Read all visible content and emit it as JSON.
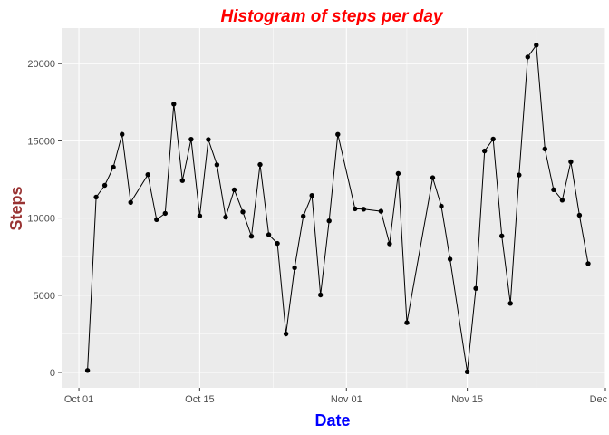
{
  "colors": {
    "title": "#ff0000",
    "xlabel": "#0000ff",
    "ylabel": "#993333",
    "panel_bg": "#ebebeb",
    "grid": "#ffffff",
    "line": "#000000",
    "point": "#000000"
  },
  "chart_data": {
    "type": "line",
    "title": "Histogram of steps per day",
    "xlabel": "Date",
    "ylabel": "Steps",
    "grid": true,
    "legend": "none",
    "xlim": [
      "2012-09-29",
      "2012-12-01"
    ],
    "ylim": [
      -1000,
      22300
    ],
    "x_ticks": [
      {
        "date": "2012-10-01",
        "label": "Oct 01"
      },
      {
        "date": "2012-10-15",
        "label": "Oct 15"
      },
      {
        "date": "2012-11-01",
        "label": "Nov 01"
      },
      {
        "date": "2012-11-15",
        "label": "Nov 15"
      },
      {
        "date": "2012-12-01",
        "label": "Dec 01"
      }
    ],
    "y_ticks": [
      0,
      5000,
      10000,
      15000,
      20000
    ],
    "x": [
      "2012-10-02",
      "2012-10-03",
      "2012-10-04",
      "2012-10-05",
      "2012-10-06",
      "2012-10-07",
      "2012-10-09",
      "2012-10-10",
      "2012-10-11",
      "2012-10-12",
      "2012-10-13",
      "2012-10-14",
      "2012-10-15",
      "2012-10-16",
      "2012-10-17",
      "2012-10-18",
      "2012-10-19",
      "2012-10-20",
      "2012-10-21",
      "2012-10-22",
      "2012-10-23",
      "2012-10-24",
      "2012-10-25",
      "2012-10-26",
      "2012-10-27",
      "2012-10-28",
      "2012-10-29",
      "2012-10-30",
      "2012-10-31",
      "2012-11-02",
      "2012-11-03",
      "2012-11-05",
      "2012-11-06",
      "2012-11-07",
      "2012-11-08",
      "2012-11-11",
      "2012-11-12",
      "2012-11-13",
      "2012-11-15",
      "2012-11-16",
      "2012-11-17",
      "2012-11-18",
      "2012-11-19",
      "2012-11-20",
      "2012-11-21",
      "2012-11-22",
      "2012-11-23",
      "2012-11-24",
      "2012-11-25",
      "2012-11-26",
      "2012-11-27",
      "2012-11-28",
      "2012-11-29"
    ],
    "values": [
      126,
      11352,
      12116,
      13294,
      15420,
      11015,
      12811,
      9900,
      10304,
      17382,
      12426,
      15098,
      10139,
      15084,
      13452,
      10056,
      11829,
      10395,
      8821,
      13460,
      8918,
      8355,
      2492,
      6778,
      10119,
      11458,
      5018,
      9819,
      15414,
      10600,
      10571,
      10439,
      8334,
      12883,
      3219,
      12608,
      10765,
      7336,
      41,
      5441,
      14339,
      15110,
      8841,
      4472,
      12787,
      20427,
      21194,
      14478,
      11834,
      11162,
      13646,
      10183,
      7047
    ]
  }
}
